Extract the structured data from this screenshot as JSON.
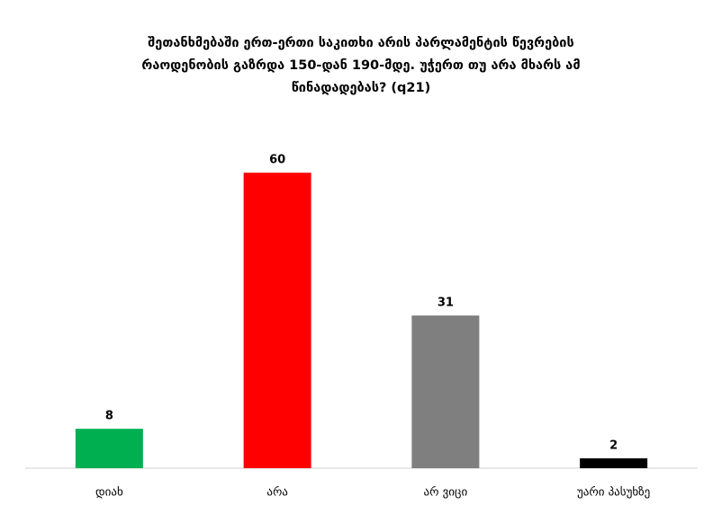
{
  "chart_data": {
    "type": "bar",
    "title": "შეთანხმებაში ერთ-ერთი საკითხი არის პარლამენტის წევრების რაოდენობის გაზრდა 150-დან 190-მდე. უჭერთ თუ არა მხარს ამ წინადადებას? (q21)",
    "categories": [
      "დიახ",
      "არა",
      "არ ვიცი",
      "უარი პასუხზე"
    ],
    "values": [
      8,
      60,
      31,
      2
    ],
    "colors": [
      "#00b050",
      "#ff0000",
      "#7f7f7f",
      "#000000"
    ]
  }
}
